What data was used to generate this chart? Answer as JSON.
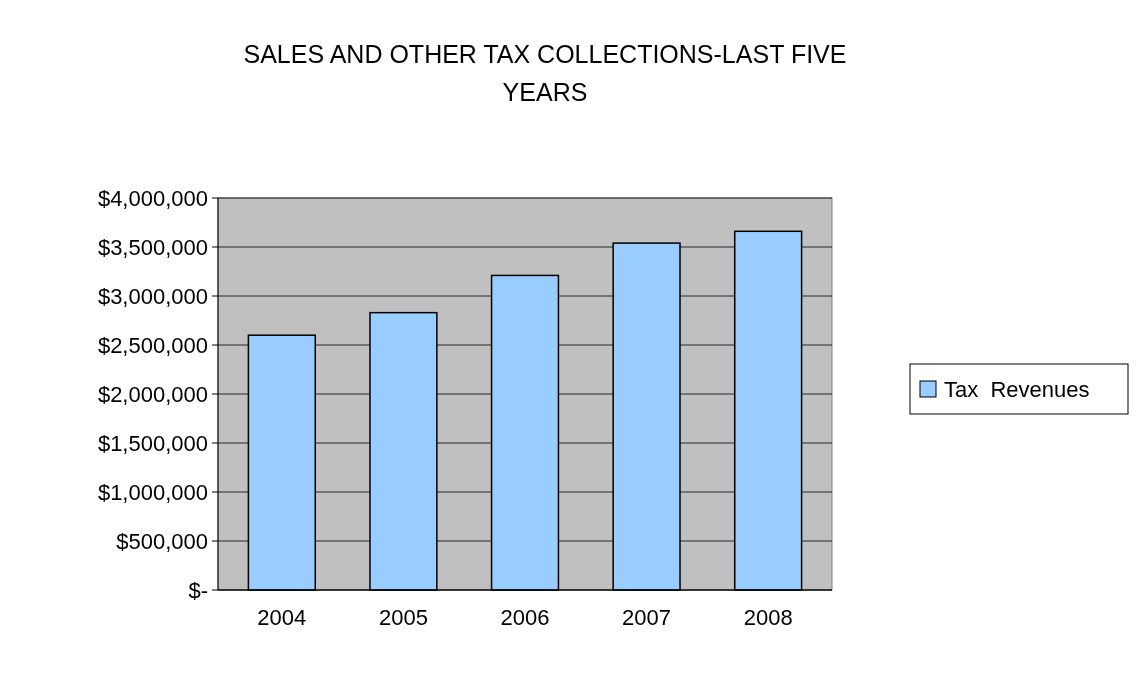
{
  "chart_data": {
    "type": "bar",
    "title": "SALES AND OTHER TAX COLLECTIONS-LAST FIVE YEARS",
    "categories": [
      "2004",
      "2005",
      "2006",
      "2007",
      "2008"
    ],
    "series": [
      {
        "name": "Tax  Revenues",
        "color": "#99ccff",
        "values": [
          2600000,
          2830000,
          3210000,
          3540000,
          3660000
        ]
      }
    ],
    "ylim": [
      0,
      4000000
    ],
    "yticks": [
      {
        "value": 0,
        "label": "$-"
      },
      {
        "value": 500000,
        "label": "$500,000"
      },
      {
        "value": 1000000,
        "label": "$1,000,000"
      },
      {
        "value": 1500000,
        "label": "$1,500,000"
      },
      {
        "value": 2000000,
        "label": "$2,000,000"
      },
      {
        "value": 2500000,
        "label": "$2,500,000"
      },
      {
        "value": 3000000,
        "label": "$3,000,000"
      },
      {
        "value": 3500000,
        "label": "$3,500,000"
      },
      {
        "value": 4000000,
        "label": "$4,000,000"
      }
    ],
    "grid": true,
    "legend": "right"
  }
}
